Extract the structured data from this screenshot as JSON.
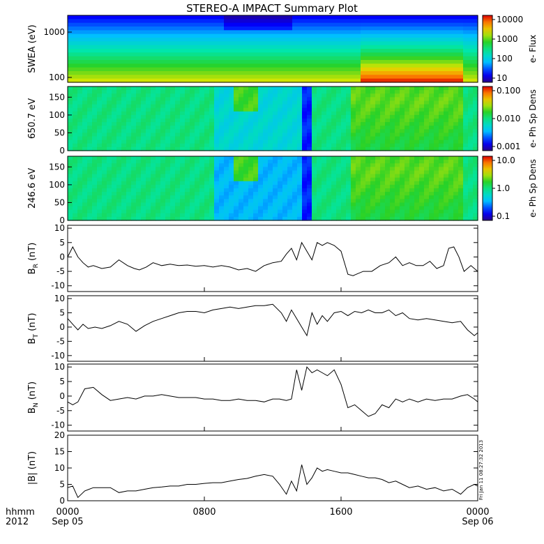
{
  "title": "STEREO-A IMPACT Summary Plot",
  "stamp": "Fri Jan 11 08:27:32 2013",
  "x_axis": {
    "corner_labels": [
      "hhmm",
      "2012"
    ],
    "ticks": [
      {
        "time": "0000",
        "date": "Sep 05"
      },
      {
        "time": "0800",
        "date": ""
      },
      {
        "time": "1600",
        "date": ""
      },
      {
        "time": "0000",
        "date": "Sep 06"
      }
    ],
    "range_hours": [
      0,
      24
    ]
  },
  "chart_data": [
    {
      "type": "heatmap",
      "ylabel": "SWEA (eV)",
      "yscale": "log",
      "ylim": [
        90,
        2000
      ],
      "yticks": [
        "100",
        "1000"
      ],
      "colorbar": {
        "label": "e- Flux",
        "ticks": [
          "10",
          "100",
          "1000",
          "10000"
        ],
        "scale": "log"
      },
      "description_values": {
        "low_energy_flux_level": 0.8,
        "high_energy_flux_level": 0.1
      }
    },
    {
      "type": "heatmap",
      "ylabel": "650.7 eV",
      "ylim": [
        0,
        180
      ],
      "yticks": [
        "0",
        "50",
        "100",
        "150"
      ],
      "colorbar": {
        "label": "e- Ph Sp Dens",
        "ticks": [
          "0.001",
          "0.010",
          "0.100"
        ],
        "scale": "log"
      }
    },
    {
      "type": "heatmap",
      "ylabel": "246.6 eV",
      "ylim": [
        0,
        180
      ],
      "yticks": [
        "0",
        "50",
        "100",
        "150"
      ],
      "colorbar": {
        "label": "e- Ph Sp Dens",
        "ticks": [
          "0.1",
          "1.0",
          "10.0"
        ],
        "scale": "log"
      }
    },
    {
      "type": "line",
      "ylabel": "B",
      "ysub": "R",
      "yunit": "(nT)",
      "ylim": [
        -12,
        11
      ],
      "yticks": [
        "-10",
        "-5",
        "0",
        "5",
        "10"
      ],
      "x": [
        0,
        0.3,
        0.6,
        0.9,
        1.2,
        1.5,
        2,
        2.5,
        3,
        3.5,
        3.9,
        4.2,
        4.6,
        5,
        5.5,
        6,
        6.5,
        7,
        7.5,
        8,
        8.5,
        9,
        9.5,
        10,
        10.5,
        11,
        11.5,
        12,
        12.5,
        12.8,
        13.1,
        13.4,
        13.7,
        14,
        14.3,
        14.6,
        14.9,
        15.2,
        15.6,
        16,
        16.4,
        16.7,
        16.9,
        17.3,
        17.8,
        18.3,
        18.8,
        19.2,
        19.6,
        20,
        20.4,
        20.8,
        21.2,
        21.6,
        22,
        22.3,
        22.6,
        22.9,
        23.2,
        23.6,
        24
      ],
      "y": [
        0,
        3.5,
        0,
        -2,
        -3.5,
        -3,
        -4,
        -3.5,
        -1,
        -3,
        -4,
        -4.5,
        -3.5,
        -2,
        -3,
        -2.5,
        -3,
        -2.8,
        -3.2,
        -3,
        -3.5,
        -3,
        -3.5,
        -4.5,
        -4,
        -5,
        -3,
        -2,
        -1.5,
        1,
        3,
        -1,
        5,
        2,
        -1,
        5,
        4,
        5,
        4,
        2,
        -6,
        -6.5,
        -6,
        -5,
        -5,
        -3,
        -2,
        0,
        -3,
        -2,
        -3,
        -3,
        -1.5,
        -4,
        -3,
        3,
        3.5,
        0,
        -5,
        -3,
        -5
      ]
    },
    {
      "type": "line",
      "ylabel": "B",
      "ysub": "T",
      "yunit": "(nT)",
      "ylim": [
        -12,
        11
      ],
      "yticks": [
        "-10",
        "-5",
        "0",
        "5",
        "10"
      ],
      "x": [
        0,
        0.3,
        0.6,
        0.9,
        1.2,
        1.6,
        2,
        2.5,
        3,
        3.5,
        4,
        4.5,
        5,
        5.5,
        6,
        6.5,
        7,
        7.5,
        8,
        8.5,
        9,
        9.5,
        10,
        10.5,
        11,
        11.5,
        12,
        12.5,
        12.8,
        13.1,
        13.4,
        13.7,
        14,
        14.3,
        14.6,
        14.9,
        15.2,
        15.6,
        16,
        16.4,
        16.8,
        17.2,
        17.6,
        18,
        18.4,
        18.8,
        19.2,
        19.6,
        20,
        20.5,
        21,
        21.5,
        22,
        22.5,
        23,
        23.4,
        23.8,
        24
      ],
      "y": [
        3,
        1,
        -1,
        1,
        -0.5,
        0,
        -0.5,
        0.5,
        2,
        1,
        -1.5,
        0.5,
        2,
        3,
        4,
        5,
        5.5,
        5.5,
        5,
        6,
        6.5,
        7,
        6.5,
        7,
        7.5,
        7.5,
        8,
        5,
        2,
        6,
        3,
        0,
        -3,
        5,
        1,
        4,
        2,
        5,
        5.5,
        4,
        5.5,
        5,
        6,
        5,
        5,
        6,
        4,
        5,
        3,
        2.5,
        3,
        2.5,
        2,
        1.5,
        2,
        -1,
        -3,
        -2
      ]
    },
    {
      "type": "line",
      "ylabel": "B",
      "ysub": "N",
      "yunit": "(nT)",
      "ylim": [
        -12,
        11
      ],
      "yticks": [
        "-10",
        "-5",
        "0",
        "5",
        "10"
      ],
      "x": [
        0,
        0.3,
        0.6,
        1,
        1.5,
        2,
        2.5,
        3,
        3.5,
        4,
        4.5,
        5,
        5.5,
        6,
        6.5,
        7,
        7.5,
        8,
        8.5,
        9,
        9.5,
        10,
        10.5,
        11,
        11.5,
        12,
        12.4,
        12.8,
        13.1,
        13.4,
        13.7,
        14,
        14.3,
        14.6,
        14.9,
        15.2,
        15.6,
        16,
        16.4,
        16.8,
        17.2,
        17.6,
        18,
        18.4,
        18.8,
        19.2,
        19.6,
        20,
        20.5,
        21,
        21.5,
        22,
        22.5,
        23,
        23.4,
        23.8,
        24
      ],
      "y": [
        -2,
        -3,
        -2,
        2.5,
        3,
        0.5,
        -1.5,
        -1,
        -0.5,
        -1,
        0,
        0,
        0.5,
        0,
        -0.5,
        -0.5,
        -0.5,
        -1,
        -1,
        -1.5,
        -1.5,
        -1,
        -1.5,
        -1.5,
        -2,
        -1,
        -1,
        -1.5,
        -1,
        9,
        2,
        10,
        8,
        9,
        8,
        7,
        9,
        4,
        -4,
        -3,
        -5,
        -7,
        -6,
        -3,
        -4,
        -1,
        -2,
        -1,
        -2,
        -1,
        -1.5,
        -1,
        -1,
        0,
        0.5,
        -1,
        -2
      ]
    },
    {
      "type": "line",
      "ylabel": "|B| (nT)",
      "ylim": [
        0,
        20
      ],
      "yticks": [
        "0",
        "5",
        "10",
        "15",
        "20"
      ],
      "x": [
        0,
        0.3,
        0.6,
        1,
        1.5,
        2,
        2.5,
        3,
        3.5,
        4,
        4.5,
        5,
        5.5,
        6,
        6.5,
        7,
        7.5,
        8,
        8.5,
        9,
        9.5,
        10,
        10.5,
        11,
        11.5,
        12,
        12.4,
        12.8,
        13.1,
        13.4,
        13.7,
        14,
        14.3,
        14.6,
        14.9,
        15.2,
        15.6,
        16,
        16.4,
        16.8,
        17.2,
        17.6,
        18,
        18.4,
        18.8,
        19.2,
        19.6,
        20,
        20.5,
        21,
        21.5,
        22,
        22.5,
        23,
        23.4,
        23.8,
        24
      ],
      "y": [
        4,
        4.5,
        1,
        3,
        4,
        4,
        4,
        2.5,
        3,
        3,
        3.5,
        4,
        4.2,
        4.5,
        4.5,
        5,
        5,
        5.3,
        5.5,
        5.5,
        6,
        6.5,
        6.8,
        7.5,
        8,
        7.5,
        5,
        2,
        6,
        3,
        11,
        5,
        7,
        10,
        9,
        9.5,
        9,
        8.5,
        8.5,
        8,
        7.5,
        7,
        7,
        6.5,
        5.5,
        6,
        5,
        4,
        4.5,
        3.5,
        4,
        3,
        3.5,
        2,
        4,
        5,
        4.5
      ]
    }
  ]
}
